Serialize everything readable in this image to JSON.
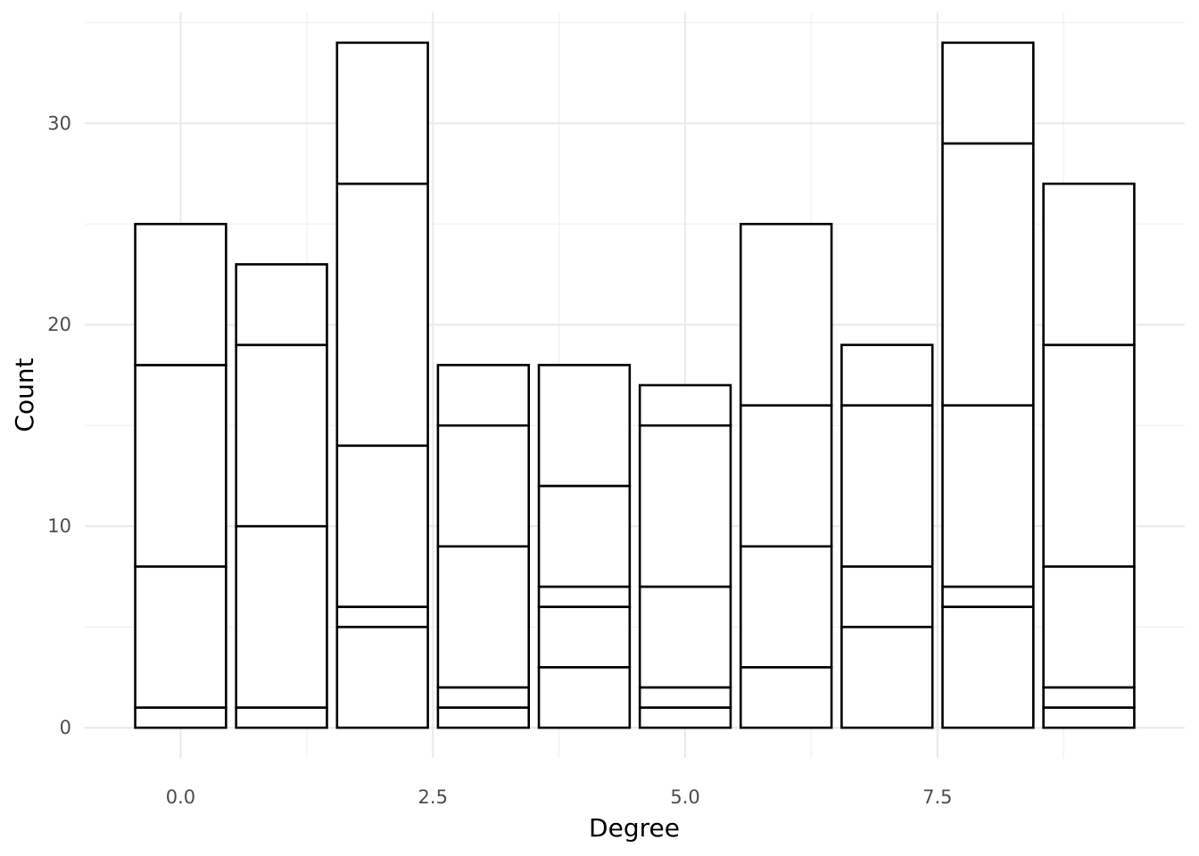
{
  "chart_data": {
    "type": "bar",
    "stacked": true,
    "bar_fill": "#ffffff",
    "bar_outline": "#000000",
    "grid": true,
    "xlabel": "Degree",
    "ylabel": "Count",
    "x_ticks": [
      "0.0",
      "2.5",
      "5.0",
      "7.5"
    ],
    "y_ticks": [
      "0",
      "10",
      "20",
      "30"
    ],
    "xlim": [
      -0.95,
      9.95
    ],
    "ylim": [
      -1.5,
      35.5
    ],
    "x": [
      0,
      1,
      2,
      3,
      4,
      5,
      6,
      7,
      8,
      9
    ],
    "stacks": [
      [
        1,
        7,
        10,
        7
      ],
      [
        1,
        9,
        9,
        4
      ],
      [
        5,
        1,
        8,
        13,
        7
      ],
      [
        1,
        1,
        7,
        6,
        3
      ],
      [
        3,
        3,
        1,
        5,
        6
      ],
      [
        1,
        1,
        5,
        8,
        2
      ],
      [
        3,
        6,
        7,
        9
      ],
      [
        5,
        3,
        8,
        3
      ],
      [
        6,
        1,
        9,
        13,
        5
      ],
      [
        1,
        1,
        6,
        11,
        8
      ]
    ],
    "totals": [
      25,
      23,
      34,
      18,
      18,
      17,
      25,
      19,
      34,
      27
    ]
  }
}
